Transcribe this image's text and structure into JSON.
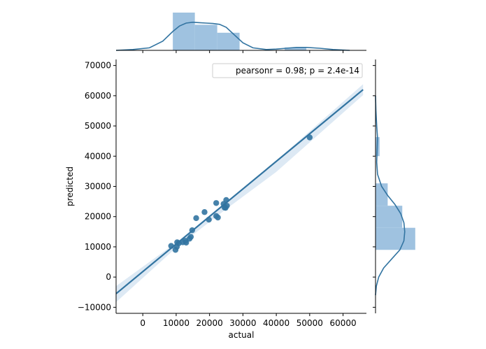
{
  "chart_data": {
    "type": "scatter",
    "subtype": "jointplot-regression",
    "xlabel": "actual",
    "ylabel": "predicted",
    "xlim": [
      -8000,
      67000
    ],
    "ylim": [
      -12000,
      72000
    ],
    "x_ticks": [
      0,
      10000,
      20000,
      30000,
      40000,
      50000,
      60000
    ],
    "y_ticks": [
      -10000,
      0,
      10000,
      20000,
      30000,
      40000,
      50000,
      60000,
      70000
    ],
    "annotation": "pearsonr = 0.98; p = 2.4e-14",
    "color": "#3274a1",
    "band_color": "#dde9f4",
    "hist_color": "#9fc2e0",
    "points": [
      [
        8500,
        10300
      ],
      [
        9800,
        9000
      ],
      [
        10200,
        10000
      ],
      [
        10300,
        11500
      ],
      [
        10800,
        11200
      ],
      [
        12000,
        11500
      ],
      [
        12800,
        12000
      ],
      [
        13000,
        11400
      ],
      [
        14000,
        12700
      ],
      [
        14400,
        13300
      ],
      [
        14800,
        15500
      ],
      [
        16000,
        19500
      ],
      [
        18500,
        21500
      ],
      [
        19800,
        19000
      ],
      [
        22000,
        24500
      ],
      [
        22000,
        20200
      ],
      [
        22500,
        19700
      ],
      [
        24200,
        24200
      ],
      [
        24500,
        23000
      ],
      [
        24800,
        22900
      ],
      [
        25000,
        25500
      ],
      [
        25200,
        23600
      ],
      [
        50000,
        46200
      ]
    ],
    "regression_line": {
      "x": [
        -8000,
        66000
      ],
      "y": [
        -5500,
        62000
      ]
    },
    "confidence_band": {
      "upper": [
        [
          -8000,
          -3000
        ],
        [
          10000,
          11400
        ],
        [
          25000,
          25000
        ],
        [
          40000,
          38500
        ],
        [
          66000,
          63800
        ]
      ],
      "lower": [
        [
          -8000,
          -8300
        ],
        [
          10000,
          9700
        ],
        [
          25000,
          22500
        ],
        [
          40000,
          34800
        ],
        [
          66000,
          60200
        ]
      ]
    },
    "x_marginal": {
      "bins": [
        [
          9000,
          15600,
          0.9
        ],
        [
          15600,
          22300,
          0.61
        ],
        [
          22300,
          29000,
          0.42
        ],
        [
          42500,
          49000,
          0.07
        ]
      ],
      "kde": [
        [
          -8000,
          0.0
        ],
        [
          -3000,
          0.02
        ],
        [
          2000,
          0.06
        ],
        [
          6000,
          0.22
        ],
        [
          9000,
          0.45
        ],
        [
          11000,
          0.58
        ],
        [
          13000,
          0.65
        ],
        [
          15000,
          0.67
        ],
        [
          17000,
          0.66
        ],
        [
          19000,
          0.65
        ],
        [
          21000,
          0.64
        ],
        [
          23000,
          0.62
        ],
        [
          25000,
          0.55
        ],
        [
          27000,
          0.4
        ],
        [
          30000,
          0.18
        ],
        [
          33000,
          0.06
        ],
        [
          37000,
          0.02
        ],
        [
          40000,
          0.03
        ],
        [
          43000,
          0.05
        ],
        [
          46000,
          0.07
        ],
        [
          49000,
          0.07
        ],
        [
          53000,
          0.05
        ],
        [
          57000,
          0.02
        ],
        [
          62000,
          0.0
        ]
      ]
    },
    "y_marginal": {
      "bins": [
        [
          9000,
          16300,
          0.98
        ],
        [
          16300,
          23600,
          0.66
        ],
        [
          23600,
          31000,
          0.3
        ],
        [
          40000,
          46300,
          0.1
        ]
      ],
      "kde": [
        [
          -6000,
          0.0
        ],
        [
          -3000,
          0.02
        ],
        [
          0,
          0.08
        ],
        [
          3000,
          0.2
        ],
        [
          6000,
          0.4
        ],
        [
          9000,
          0.6
        ],
        [
          12000,
          0.7
        ],
        [
          15000,
          0.72
        ],
        [
          18000,
          0.7
        ],
        [
          21000,
          0.62
        ],
        [
          24000,
          0.48
        ],
        [
          27000,
          0.3
        ],
        [
          30000,
          0.15
        ],
        [
          34000,
          0.05
        ],
        [
          38000,
          0.03
        ],
        [
          42000,
          0.04
        ],
        [
          46000,
          0.05
        ],
        [
          50000,
          0.03
        ],
        [
          55000,
          0.01
        ],
        [
          60000,
          0.0
        ]
      ]
    }
  }
}
